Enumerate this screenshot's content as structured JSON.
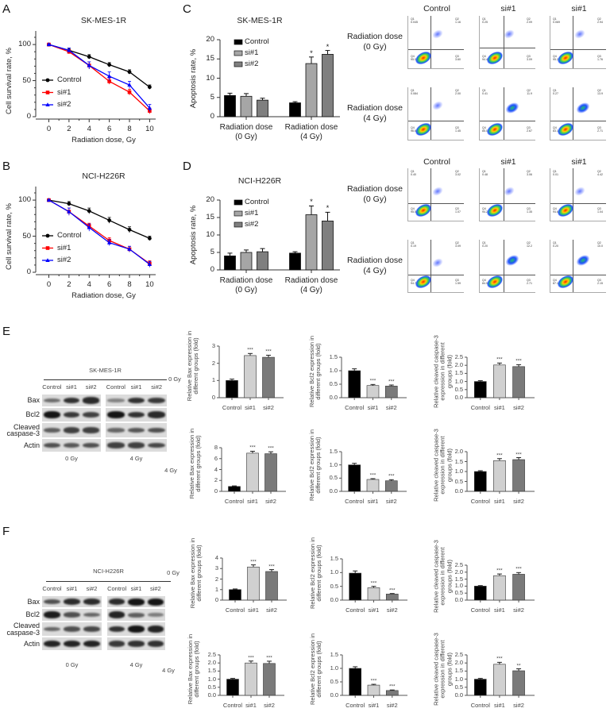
{
  "panel_labels": [
    "A",
    "B",
    "C",
    "D",
    "E",
    "F"
  ],
  "chart_data": [
    {
      "type": "line",
      "panel": "A",
      "title": "SK-MES-1R",
      "xlabel": "Radiation dose, Gy",
      "ylabel": "Cell survival rate, %",
      "x": [
        0,
        2,
        4,
        6,
        8,
        10
      ],
      "xticks": [
        0,
        2,
        4,
        6,
        8,
        10
      ],
      "ylim": [
        0,
        110
      ],
      "yticks": [
        0,
        50,
        100
      ],
      "legend": "center-left",
      "series": [
        {
          "name": "Control",
          "values": [
            100,
            92,
            83,
            72,
            62,
            41
          ],
          "errors": [
            1,
            3,
            3,
            3,
            3,
            3
          ],
          "color": "#000000",
          "marker": "circle"
        },
        {
          "name": "si#1",
          "values": [
            100,
            90,
            71,
            49,
            34,
            8
          ],
          "errors": [
            1,
            3,
            5,
            4,
            4,
            4
          ],
          "color": "#ff0000",
          "marker": "square"
        },
        {
          "name": "si#2",
          "values": [
            100,
            92,
            71,
            56,
            44,
            12
          ],
          "errors": [
            1,
            3,
            5,
            6,
            5,
            5
          ],
          "color": "#0000ff",
          "marker": "triangle"
        }
      ]
    },
    {
      "type": "line",
      "panel": "B",
      "title": "NCI-H226R",
      "xlabel": "Radiation dose, Gy",
      "ylabel": "Cell survival rate, %",
      "x": [
        0,
        2,
        4,
        6,
        8,
        10
      ],
      "xticks": [
        0,
        2,
        4,
        6,
        8,
        10
      ],
      "ylim": [
        0,
        110
      ],
      "yticks": [
        0,
        50,
        100
      ],
      "legend": "center-left",
      "series": [
        {
          "name": "Control",
          "values": [
            100,
            95,
            85,
            72,
            59,
            47
          ],
          "errors": [
            1,
            3,
            4,
            4,
            4,
            3
          ],
          "color": "#000000",
          "marker": "circle"
        },
        {
          "name": "si#1",
          "values": [
            100,
            84,
            64,
            44,
            32,
            12
          ],
          "errors": [
            1,
            5,
            4,
            4,
            4,
            4
          ],
          "color": "#ff0000",
          "marker": "square"
        },
        {
          "name": "si#2",
          "values": [
            100,
            84,
            62,
            41,
            32,
            11
          ],
          "errors": [
            1,
            5,
            5,
            4,
            4,
            4
          ],
          "color": "#0000ff",
          "marker": "triangle"
        }
      ]
    },
    {
      "type": "bar",
      "panel": "C",
      "title": "SK-MES-1R",
      "ylabel": "Apoptosis rate, %",
      "ylim": [
        0,
        20
      ],
      "yticks": [
        0,
        5,
        10,
        15,
        20
      ],
      "legend": "top-left",
      "categories": [
        "Radiation dose (0 Gy)",
        "Radiation dose (4 Gy)"
      ],
      "series": [
        {
          "name": "Control",
          "values": [
            5.5,
            3.6
          ],
          "errors": [
            0.6,
            0.3
          ],
          "significance": [
            "",
            ""
          ],
          "color": "#000000"
        },
        {
          "name": "si#1",
          "values": [
            5.3,
            13.8
          ],
          "errors": [
            0.7,
            1.7
          ],
          "significance": [
            "",
            "*"
          ],
          "color": "#a6a6a6"
        },
        {
          "name": "si#2",
          "values": [
            4.3,
            16.2
          ],
          "errors": [
            0.5,
            1.0
          ],
          "significance": [
            "",
            "*"
          ],
          "color": "#7f7f7f"
        }
      ]
    },
    {
      "type": "bar",
      "panel": "D",
      "title": "NCI-H226R",
      "ylabel": "Apoptosis rate, %",
      "ylim": [
        0,
        20
      ],
      "yticks": [
        0,
        5,
        10,
        15,
        20
      ],
      "legend": "top-left",
      "categories": [
        "Radiation dose (0 Gy)",
        "Radiation dose (4 Gy)"
      ],
      "series": [
        {
          "name": "Control",
          "values": [
            4.0,
            4.8
          ],
          "errors": [
            0.8,
            0.4
          ],
          "significance": [
            "",
            ""
          ],
          "color": "#000000"
        },
        {
          "name": "si#1",
          "values": [
            5.0,
            15.8
          ],
          "errors": [
            0.7,
            2.5
          ],
          "significance": [
            "",
            "*"
          ],
          "color": "#a6a6a6"
        },
        {
          "name": "si#2",
          "values": [
            5.2,
            14.0
          ],
          "errors": [
            0.9,
            2.5
          ],
          "significance": [
            "",
            "*"
          ],
          "color": "#7f7f7f"
        }
      ]
    },
    {
      "type": "bar",
      "panel": "E",
      "row": "0 Gy",
      "ylabel": [
        "Relative Bax expression in",
        "different groups (fold)"
      ],
      "categories": [
        "Control",
        "si#1",
        "si#2"
      ],
      "values": [
        1.0,
        2.45,
        2.35
      ],
      "errors": [
        0.08,
        0.12,
        0.12
      ],
      "significance": [
        "",
        "***",
        "***"
      ],
      "ylim": [
        0,
        3
      ],
      "yticks": [
        "0",
        "1",
        "2",
        "3"
      ],
      "colors": [
        "#000000",
        "#d0d0d0",
        "#7a7a7a"
      ]
    },
    {
      "type": "bar",
      "panel": "E",
      "row": "0 Gy",
      "ylabel": [
        "Relative Bcl2 expression in",
        "different groups (fold)"
      ],
      "categories": [
        "Control",
        "si#1",
        "si#2"
      ],
      "values": [
        1.0,
        0.45,
        0.43
      ],
      "errors": [
        0.07,
        0.04,
        0.04
      ],
      "significance": [
        "",
        "***",
        "***"
      ],
      "ylim": [
        0,
        1.5
      ],
      "yticks": [
        "0.0",
        "0.5",
        "1.0",
        "1.5"
      ],
      "colors": [
        "#000000",
        "#d0d0d0",
        "#7a7a7a"
      ]
    },
    {
      "type": "bar",
      "panel": "E",
      "row": "0 Gy",
      "ylabel": [
        "Relative cleaved caspase-3",
        "expression in different",
        "groups (fold)"
      ],
      "categories": [
        "Control",
        "si#1",
        "si#2"
      ],
      "values": [
        1.0,
        2.02,
        1.92
      ],
      "errors": [
        0.05,
        0.12,
        0.12
      ],
      "significance": [
        "",
        "***",
        "***"
      ],
      "ylim": [
        0,
        2.5
      ],
      "yticks": [
        "0.0",
        "0.5",
        "1.0",
        "1.5",
        "2.0",
        "2.5"
      ],
      "colors": [
        "#000000",
        "#d0d0d0",
        "#7a7a7a"
      ]
    },
    {
      "type": "bar",
      "panel": "E",
      "row": "4 Gy",
      "ylabel": [
        "Relative Bax expression in",
        "different groups (fold)"
      ],
      "categories": [
        "Control",
        "si#1",
        "si#2"
      ],
      "values": [
        0.9,
        7.0,
        6.9
      ],
      "errors": [
        0.1,
        0.35,
        0.35
      ],
      "significance": [
        "",
        "***",
        "***"
      ],
      "ylim": [
        0,
        8
      ],
      "yticks": [
        "0",
        "2",
        "4",
        "6",
        "8"
      ],
      "colors": [
        "#000000",
        "#d0d0d0",
        "#7a7a7a"
      ]
    },
    {
      "type": "bar",
      "panel": "E",
      "row": "4 Gy",
      "ylabel": [
        "Relative Bcl2 expression in",
        "different groups (fold)"
      ],
      "categories": [
        "Control",
        "si#1",
        "si#2"
      ],
      "values": [
        1.0,
        0.45,
        0.4
      ],
      "errors": [
        0.06,
        0.03,
        0.04
      ],
      "significance": [
        "",
        "***",
        "***"
      ],
      "ylim": [
        0,
        1.5
      ],
      "yticks": [
        "0.0",
        "0.5",
        "1.0",
        "1.5"
      ],
      "colors": [
        "#000000",
        "#d0d0d0",
        "#7a7a7a"
      ]
    },
    {
      "type": "bar",
      "panel": "E",
      "row": "4 Gy",
      "ylabel": [
        "Relative cleaved caspase-3",
        "expression in different",
        "groups (fold)"
      ],
      "categories": [
        "Control",
        "si#1",
        "si#2"
      ],
      "values": [
        1.0,
        1.55,
        1.6
      ],
      "errors": [
        0.04,
        0.1,
        0.1
      ],
      "significance": [
        "",
        "***",
        "***"
      ],
      "ylim": [
        0,
        2.0
      ],
      "yticks": [
        "0.0",
        "0.5",
        "1.0",
        "1.5",
        "2.0"
      ],
      "colors": [
        "#000000",
        "#d0d0d0",
        "#7a7a7a"
      ]
    },
    {
      "type": "bar",
      "panel": "F",
      "row": "0 Gy",
      "ylabel": [
        "Relative Bax expression in",
        "different groups (fold)"
      ],
      "categories": [
        "Control",
        "si#1",
        "si#2"
      ],
      "values": [
        1.0,
        3.15,
        2.72
      ],
      "errors": [
        0.06,
        0.2,
        0.18
      ],
      "significance": [
        "",
        "***",
        "***"
      ],
      "ylim": [
        0,
        4
      ],
      "yticks": [
        "0",
        "1",
        "2",
        "3",
        "4"
      ],
      "colors": [
        "#000000",
        "#d0d0d0",
        "#7a7a7a"
      ]
    },
    {
      "type": "bar",
      "panel": "F",
      "row": "0 Gy",
      "ylabel": [
        "Relative Bcl2 expression in",
        "different groups (fold)"
      ],
      "categories": [
        "Control",
        "si#1",
        "si#2"
      ],
      "values": [
        0.98,
        0.45,
        0.22
      ],
      "errors": [
        0.08,
        0.05,
        0.02
      ],
      "significance": [
        "",
        "***",
        "***"
      ],
      "ylim": [
        0,
        1.5
      ],
      "yticks": [
        "0.0",
        "0.5",
        "1.0",
        "1.5"
      ],
      "colors": [
        "#000000",
        "#d0d0d0",
        "#7a7a7a"
      ]
    },
    {
      "type": "bar",
      "panel": "F",
      "row": "0 Gy",
      "ylabel": [
        "Relative cleaved caspase-3",
        "expression in different",
        "groups (fold)"
      ],
      "categories": [
        "Control",
        "si#1",
        "si#2"
      ],
      "values": [
        1.0,
        1.75,
        1.85
      ],
      "errors": [
        0.04,
        0.12,
        0.12
      ],
      "significance": [
        "",
        "***",
        "***"
      ],
      "ylim": [
        0,
        2.5
      ],
      "yticks": [
        "0.0",
        "0.5",
        "1.0",
        "1.5",
        "2.0",
        "2.5"
      ],
      "colors": [
        "#000000",
        "#d0d0d0",
        "#7a7a7a"
      ]
    },
    {
      "type": "bar",
      "panel": "F",
      "row": "4 Gy",
      "ylabel": [
        "Relative Bax expression in",
        "different groups (fold)"
      ],
      "categories": [
        "Control",
        "si#1",
        "si#2"
      ],
      "values": [
        1.0,
        2.0,
        1.97
      ],
      "errors": [
        0.05,
        0.12,
        0.14
      ],
      "significance": [
        "",
        "***",
        "***"
      ],
      "ylim": [
        0,
        2.5
      ],
      "yticks": [
        "0.0",
        "0.5",
        "1.0",
        "1.5",
        "2.0",
        "2.5"
      ],
      "colors": [
        "#000000",
        "#d0d0d0",
        "#7a7a7a"
      ]
    },
    {
      "type": "bar",
      "panel": "F",
      "row": "4 Gy",
      "ylabel": [
        "Relative Bcl2 expression in",
        "different groups (fold)"
      ],
      "categories": [
        "Control",
        "si#1",
        "si#2"
      ],
      "values": [
        1.0,
        0.38,
        0.18
      ],
      "errors": [
        0.06,
        0.03,
        0.02
      ],
      "significance": [
        "",
        "***",
        "***"
      ],
      "ylim": [
        0,
        1.5
      ],
      "yticks": [
        "0.0",
        "0.5",
        "1.0",
        "1.5"
      ],
      "colors": [
        "#000000",
        "#d0d0d0",
        "#7a7a7a"
      ]
    },
    {
      "type": "bar",
      "panel": "F",
      "row": "4 Gy",
      "ylabel": [
        "Relative cleaved caspase-3",
        "expression in different",
        "groups (fold)"
      ],
      "categories": [
        "Control",
        "si#1",
        "si#2"
      ],
      "values": [
        1.0,
        1.92,
        1.52
      ],
      "errors": [
        0.05,
        0.12,
        0.12
      ],
      "significance": [
        "",
        "***",
        "**"
      ],
      "ylim": [
        0,
        2.5
      ],
      "yticks": [
        "0.0",
        "0.5",
        "1.0",
        "1.5",
        "2.0",
        "2.5"
      ],
      "colors": [
        "#000000",
        "#d0d0d0",
        "#7a7a7a"
      ]
    }
  ],
  "flow": {
    "column_headers": [
      "Control",
      "si#1",
      "si#1"
    ],
    "row_labels": [
      "Radiation dose (0 Gy)",
      "Radiation dose (4 Gy)"
    ],
    "quadrant_labels": [
      "Q1",
      "Q2",
      "Q3",
      "Q4"
    ],
    "panels": [
      {
        "panel": "C",
        "rows": [
          [
            {
              "q": [
                "0.045",
                "1.16",
                "3.60",
                "95.0"
              ]
            },
            {
              "q": [
                "0.25",
                "2.09",
                "3.09",
                "94.4"
              ]
            },
            {
              "q": [
                "0.069",
                "2.94",
                "1.76",
                "95.2"
              ]
            }
          ],
          [
            {
              "q": [
                "0.084",
                "2.00",
                "1.45",
                "96.6"
              ]
            },
            {
              "q": [
                "0.41",
                "11.9",
                "2.67",
                "85.0"
              ]
            },
            {
              "q": [
                "0.27",
                "13.9",
                "2.71",
                "83.1"
              ]
            }
          ]
        ]
      },
      {
        "panel": "D",
        "rows": [
          [
            {
              "q": [
                "0.40",
                "3.02",
                "1.07",
                "95.5"
              ]
            },
            {
              "q": [
                "0.48",
                "3.06",
                "1.35",
                "94.2"
              ]
            },
            {
              "q": [
                "0.01",
                "4.42",
                "1.04",
                "94.6"
              ]
            }
          ],
          [
            {
              "q": [
                "0.19",
                "3.09",
                "1.59",
                "94.7"
              ]
            },
            {
              "q": [
                "0.20",
                "12.2",
                "2.71",
                "84.9"
              ]
            },
            {
              "q": [
                "0.20",
                "10.0",
                "2.15",
                "87.1"
              ]
            }
          ]
        ]
      }
    ]
  },
  "blots": [
    {
      "panel": "E",
      "title": "SK-MES-1R",
      "lanes": [
        "Control",
        "si#1",
        "si#2",
        "Control",
        "si#1",
        "si#2"
      ],
      "rows": [
        "Bax",
        "Bcl2",
        "Cleaved caspase-3",
        "Actin"
      ],
      "doses": [
        "0 Gy",
        "4 Gy"
      ]
    },
    {
      "panel": "F",
      "title": "NCI-H226R",
      "lanes": [
        "Control",
        "si#1",
        "si#2",
        "Control",
        "si#1",
        "si#2"
      ],
      "rows": [
        "Bax",
        "Bcl2",
        "Cleaved caspase-3",
        "Actin"
      ],
      "doses": [
        "0 Gy",
        "4 Gy"
      ]
    }
  ],
  "row_dose_labels": [
    "0 Gy",
    "4 Gy"
  ]
}
